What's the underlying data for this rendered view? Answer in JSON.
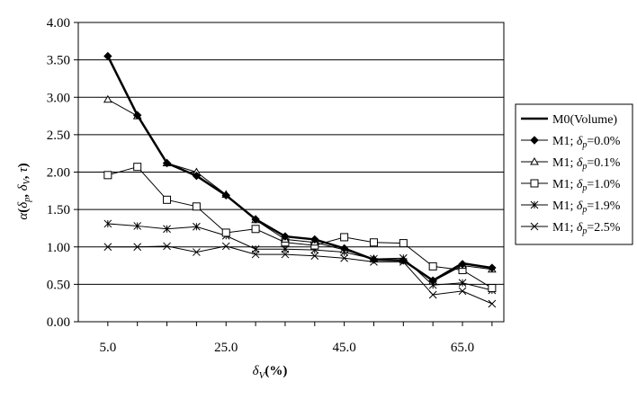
{
  "chart_data": {
    "type": "line",
    "xlabel_prefix": "δ",
    "xlabel_sub": "V",
    "xlabel_suffix": "(%)",
    "ylabel": "α(δp, δV, τ)",
    "ylabel_alpha": "α",
    "ylabel_open": "(",
    "ylabel_dp": "δ",
    "ylabel_p": "p",
    "ylabel_comma1": ", ",
    "ylabel_dv": "δ",
    "ylabel_v": "V",
    "ylabel_comma2": ", ",
    "ylabel_tau": "τ",
    "ylabel_close": ")",
    "xlim": [
      0,
      72
    ],
    "ylim": [
      0,
      4
    ],
    "x_ticks": [
      5,
      25,
      45,
      65
    ],
    "x_tick_labels": [
      "5.0",
      "25.0",
      "45.0",
      "65.0"
    ],
    "y_ticks": [
      0,
      0.5,
      1,
      1.5,
      2,
      2.5,
      3,
      3.5,
      4
    ],
    "y_tick_labels": [
      "0.00",
      "0.50",
      "1.00",
      "1.50",
      "2.00",
      "2.50",
      "3.00",
      "3.50",
      "4.00"
    ],
    "grid": "horizontal",
    "legend_position": "right",
    "x": [
      5,
      10,
      15,
      20,
      25,
      30,
      35,
      40,
      45,
      50,
      55,
      60,
      65,
      70
    ],
    "series": [
      {
        "name": "M0(Volume)",
        "legend_prefix": "M0(Volume)",
        "legend_symbol": "",
        "legend_sub": "",
        "legend_suffix": "",
        "marker": "none",
        "values": [
          3.55,
          2.76,
          2.12,
          1.95,
          1.69,
          1.37,
          1.14,
          1.1,
          0.98,
          0.83,
          0.82,
          0.55,
          0.78,
          0.72
        ]
      },
      {
        "name": "M1; δp=0.0%",
        "legend_prefix": "M1; ",
        "legend_symbol": "δ",
        "legend_sub": "p",
        "legend_suffix": "=0.0%",
        "marker": "diamond",
        "values": [
          3.55,
          2.76,
          2.12,
          1.95,
          1.69,
          1.37,
          1.14,
          1.1,
          0.98,
          0.83,
          0.82,
          0.55,
          0.77,
          0.72
        ]
      },
      {
        "name": "M1; δp=0.1%",
        "legend_prefix": "M1; ",
        "legend_symbol": "δ",
        "legend_sub": "p",
        "legend_suffix": "=0.1%",
        "marker": "triangle",
        "values": [
          2.97,
          2.75,
          2.12,
          2.0,
          1.7,
          1.36,
          1.1,
          1.06,
          0.96,
          0.84,
          0.82,
          0.54,
          0.75,
          0.7
        ]
      },
      {
        "name": "M1; δp=1.0%",
        "legend_prefix": "M1; ",
        "legend_symbol": "δ",
        "legend_sub": "p",
        "legend_suffix": "=1.0%",
        "marker": "square",
        "values": [
          1.96,
          2.07,
          1.63,
          1.54,
          1.19,
          1.24,
          1.06,
          1.02,
          1.13,
          1.06,
          1.05,
          0.74,
          0.69,
          0.45
        ]
      },
      {
        "name": "M1; δp=1.9%",
        "legend_prefix": "M1; ",
        "legend_symbol": "δ",
        "legend_sub": "p",
        "legend_suffix": "=1.9%",
        "marker": "star",
        "values": [
          1.31,
          1.28,
          1.24,
          1.27,
          1.15,
          0.97,
          0.97,
          0.96,
          0.93,
          0.84,
          0.85,
          0.49,
          0.52,
          0.42
        ]
      },
      {
        "name": "M1; δp=2.5%",
        "legend_prefix": "M1; ",
        "legend_symbol": "δ",
        "legend_sub": "p",
        "legend_suffix": "=2.5%",
        "marker": "x",
        "values": [
          1.0,
          1.0,
          1.01,
          0.93,
          1.01,
          0.9,
          0.9,
          0.88,
          0.85,
          0.8,
          0.8,
          0.36,
          0.41,
          0.24
        ]
      }
    ]
  }
}
